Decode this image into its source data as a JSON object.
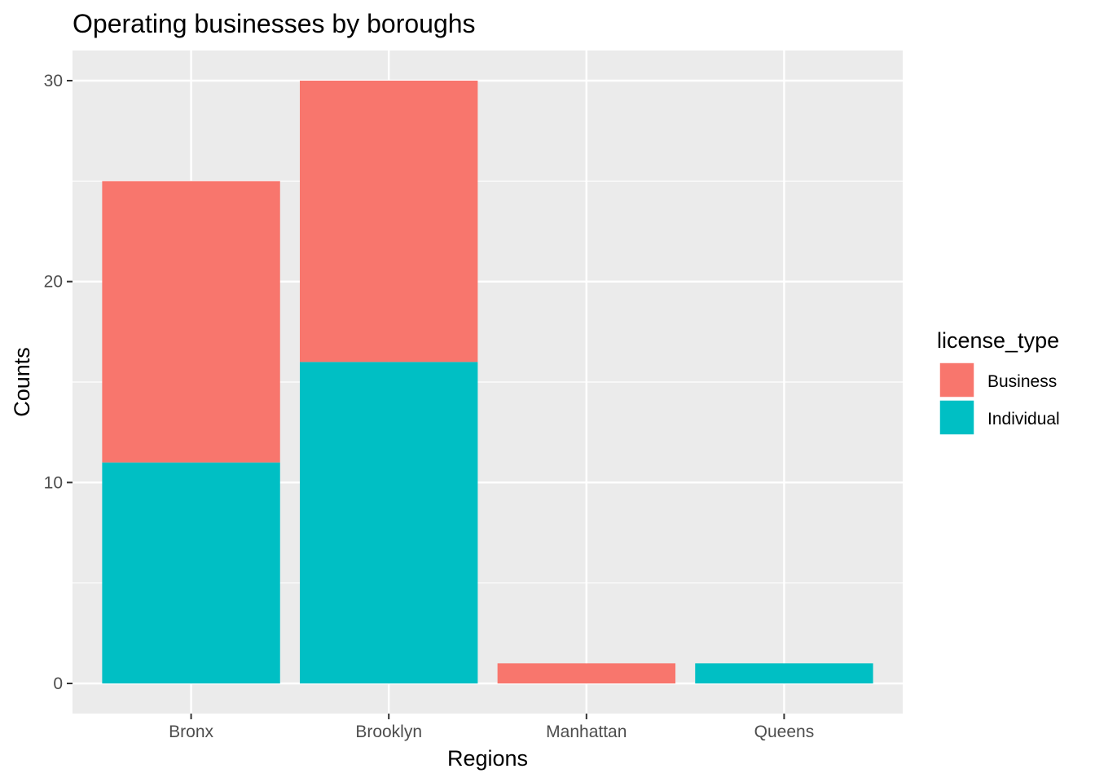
{
  "chart_data": {
    "type": "bar",
    "stacked": true,
    "title": "Operating businesses by boroughs",
    "xlabel": "Regions",
    "ylabel": "Counts",
    "categories": [
      "Bronx",
      "Brooklyn",
      "Manhattan",
      "Queens"
    ],
    "series": [
      {
        "name": "Business",
        "values": [
          14,
          14,
          1,
          0
        ],
        "color": "#F8766D"
      },
      {
        "name": "Individual",
        "values": [
          11,
          16,
          0,
          1
        ],
        "color": "#00BFC4"
      }
    ],
    "stack_order": [
      "Individual",
      "Business"
    ],
    "ylim": [
      -1.5,
      31.5
    ],
    "yticks": [
      0,
      10,
      20,
      30
    ],
    "grid": true,
    "panel_background": "#EBEBEB",
    "legend": {
      "title": "license_type",
      "placement": "right"
    }
  }
}
